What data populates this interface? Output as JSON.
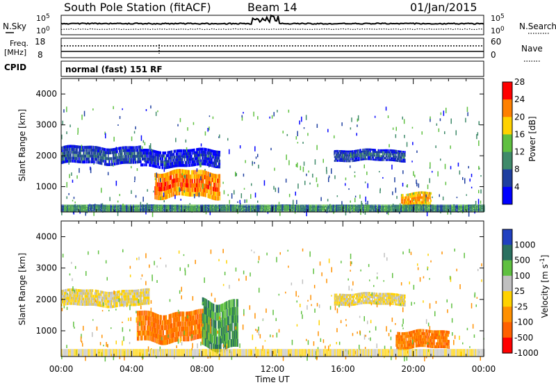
{
  "header": {
    "title": "South Pole Station (fitACF)",
    "beam": "Beam 14",
    "date": "01/Jan/2015"
  },
  "top_panels": {
    "nsky": {
      "label": "N.Sky",
      "ytick_top": "10^5",
      "ytick_bottom": "10^0"
    },
    "nsearch": {
      "label": "N.Search",
      "ytick_top": "10^5",
      "ytick_bottom": "10^0"
    },
    "freq": {
      "label_line1": "Freq.",
      "label_line2": "[MHz]",
      "ytick_top": "18",
      "ytick_bottom": "8"
    },
    "nave": {
      "label": "Nave",
      "ytick_top": "60",
      "ytick_bottom": "0"
    },
    "cpid": {
      "label": "CPID",
      "text": "normal (fast) 151 RF"
    }
  },
  "chart_data": [
    {
      "type": "heatmap",
      "panel": "power",
      "xlabel": "",
      "ylabel": "Slant Range [km]",
      "xlim": [
        0,
        24
      ],
      "ylim": [
        180,
        4500
      ],
      "yticks": [
        "1000",
        "2000",
        "3000",
        "4000"
      ],
      "colorbar": {
        "label": "Power [dB]",
        "ticks": [
          "4",
          "8",
          "12",
          "16",
          "20",
          "24",
          "28"
        ],
        "colors": [
          "#0000ff",
          "#1e3fa0",
          "#3f8a6a",
          "#5fc040",
          "#ffd200",
          "#ff8000",
          "#ff0000"
        ]
      },
      "features": [
        {
          "desc": "echo band",
          "t_start": 0.0,
          "t_end": 4.5,
          "range_km": [
            1700,
            2300
          ],
          "power_db": 8
        },
        {
          "desc": "echo band",
          "t_start": 4.5,
          "t_end": 9.0,
          "range_km": [
            1600,
            2200
          ],
          "power_db": 6
        },
        {
          "desc": "strong echoes",
          "t_start": 5.3,
          "t_end": 9.0,
          "range_km": [
            600,
            1500
          ],
          "power_db": 24
        },
        {
          "desc": "echo band",
          "t_start": 15.5,
          "t_end": 19.5,
          "range_km": [
            1800,
            2200
          ],
          "power_db": 8
        },
        {
          "desc": "strong echoes",
          "t_start": 19.3,
          "t_end": 21.0,
          "range_km": [
            300,
            800
          ],
          "power_db": 22
        },
        {
          "desc": "near-range clutter",
          "t_start": 0.0,
          "t_end": 24.0,
          "range_km": [
            180,
            400
          ],
          "power_db": 10
        }
      ]
    },
    {
      "type": "heatmap",
      "panel": "velocity",
      "xlabel": "Time UT",
      "ylabel": "Slant Range [km]",
      "xlim": [
        0,
        24
      ],
      "xticks": [
        "00:00",
        "04:00",
        "08:00",
        "12:00",
        "16:00",
        "20:00",
        "00:00"
      ],
      "ylim": [
        180,
        4500
      ],
      "yticks": [
        "1000",
        "2000",
        "3000",
        "4000"
      ],
      "colorbar": {
        "label": "Velocity [m s^-1]",
        "ticks": [
          "1000",
          "500",
          "100",
          "25",
          "-25",
          "-100",
          "-500",
          "-1000"
        ],
        "colors": [
          "#2040c0",
          "#2a7060",
          "#5fc040",
          "#c0c0c0",
          "#ffd200",
          "#ff9000",
          "#ff6000",
          "#ff0000"
        ]
      },
      "features": [
        {
          "desc": "ground scatter band",
          "t_start": 0.0,
          "t_end": 5.0,
          "range_km": [
            1750,
            2300
          ],
          "velocity_ms": 0
        },
        {
          "desc": "receding flow",
          "t_start": 4.3,
          "t_end": 8.5,
          "range_km": [
            600,
            1600
          ],
          "velocity_ms": -300
        },
        {
          "desc": "approaching flow",
          "t_start": 8.0,
          "t_end": 10.0,
          "range_km": [
            400,
            2000
          ],
          "velocity_ms": 300
        },
        {
          "desc": "ground scatter band",
          "t_start": 15.5,
          "t_end": 19.5,
          "range_km": [
            1800,
            2200
          ],
          "velocity_ms": 0
        },
        {
          "desc": "receding flow",
          "t_start": 19.0,
          "t_end": 22.0,
          "range_km": [
            400,
            1000
          ],
          "velocity_ms": -300
        }
      ]
    }
  ]
}
